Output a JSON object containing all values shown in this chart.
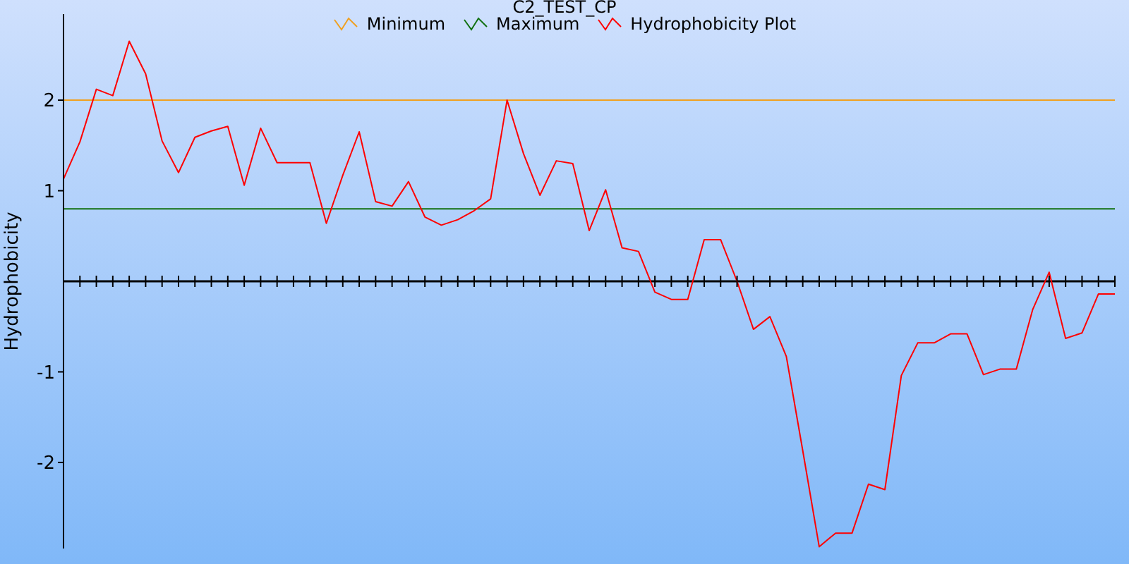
{
  "chart_data": {
    "type": "line",
    "title": "C2_TEST_CP",
    "ylabel": "Hydrophobicity",
    "categories": [
      null,
      null,
      null,
      null,
      null,
      null,
      null,
      null,
      null,
      null,
      null,
      null,
      null,
      null,
      null,
      null,
      null,
      null,
      null,
      null,
      null,
      null,
      null,
      null,
      null,
      null,
      null,
      null,
      null,
      null,
      null,
      null,
      null,
      null,
      null,
      null,
      null,
      null,
      null,
      null,
      null,
      null,
      null,
      null,
      null,
      null,
      null,
      null,
      null,
      null,
      null,
      null,
      null,
      null,
      null,
      null,
      null,
      null,
      null,
      null,
      null,
      null,
      null,
      null,
      null
    ],
    "series": [
      {
        "name": "Minimum",
        "color": "#f0a020",
        "values": [
          2,
          2,
          2,
          2,
          2,
          2,
          2,
          2,
          2,
          2,
          2,
          2,
          2,
          2,
          2,
          2,
          2,
          2,
          2,
          2,
          2,
          2,
          2,
          2,
          2,
          2,
          2,
          2,
          2,
          2,
          2,
          2,
          2,
          2,
          2,
          2,
          2,
          2,
          2,
          2,
          2,
          2,
          2,
          2,
          2,
          2,
          2,
          2,
          2,
          2,
          2,
          2,
          2,
          2,
          2,
          2,
          2,
          2,
          2,
          2,
          2,
          2,
          2,
          2,
          2
        ]
      },
      {
        "name": "Maximum",
        "color": "#107010",
        "values": [
          0.8,
          0.8,
          0.8,
          0.8,
          0.8,
          0.8,
          0.8,
          0.8,
          0.8,
          0.8,
          0.8,
          0.8,
          0.8,
          0.8,
          0.8,
          0.8,
          0.8,
          0.8,
          0.8,
          0.8,
          0.8,
          0.8,
          0.8,
          0.8,
          0.8,
          0.8,
          0.8,
          0.8,
          0.8,
          0.8,
          0.8,
          0.8,
          0.8,
          0.8,
          0.8,
          0.8,
          0.8,
          0.8,
          0.8,
          0.8,
          0.8,
          0.8,
          0.8,
          0.8,
          0.8,
          0.8,
          0.8,
          0.8,
          0.8,
          0.8,
          0.8,
          0.8,
          0.8,
          0.8,
          0.8,
          0.8,
          0.8,
          0.8,
          0.8,
          0.8,
          0.8,
          0.8,
          0.8,
          0.8,
          0.8
        ]
      },
      {
        "name": "Hydrophobicity Plot",
        "color": "#ff0000",
        "values": [
          1.13,
          1.54,
          2.12,
          2.05,
          2.65,
          2.29,
          1.55,
          1.2,
          1.59,
          1.66,
          1.71,
          1.06,
          1.69,
          1.31,
          1.31,
          1.31,
          0.64,
          1.17,
          1.65,
          0.88,
          0.83,
          1.1,
          0.71,
          0.62,
          0.68,
          0.78,
          0.91,
          2.0,
          1.41,
          0.95,
          1.33,
          1.3,
          0.56,
          1.01,
          0.37,
          0.33,
          -0.12,
          -0.2,
          -0.2,
          0.46,
          0.46,
          0.0,
          -0.53,
          -0.39,
          -0.83,
          -1.87,
          -2.93,
          -2.78,
          -2.78,
          -2.24,
          -2.3,
          -1.04,
          -0.68,
          -0.68,
          -0.58,
          -0.58,
          -1.03,
          -0.97,
          -0.97,
          -0.31,
          0.1,
          -0.63,
          -0.57,
          -0.14,
          -0.14
        ]
      }
    ],
    "ylim": [
      -2.95,
      2.95
    ],
    "yticks": [
      -2,
      -1,
      1,
      2
    ],
    "tick_labels": "y",
    "legend": "top",
    "grid": false,
    "marker": "none",
    "line_style": "solid"
  }
}
